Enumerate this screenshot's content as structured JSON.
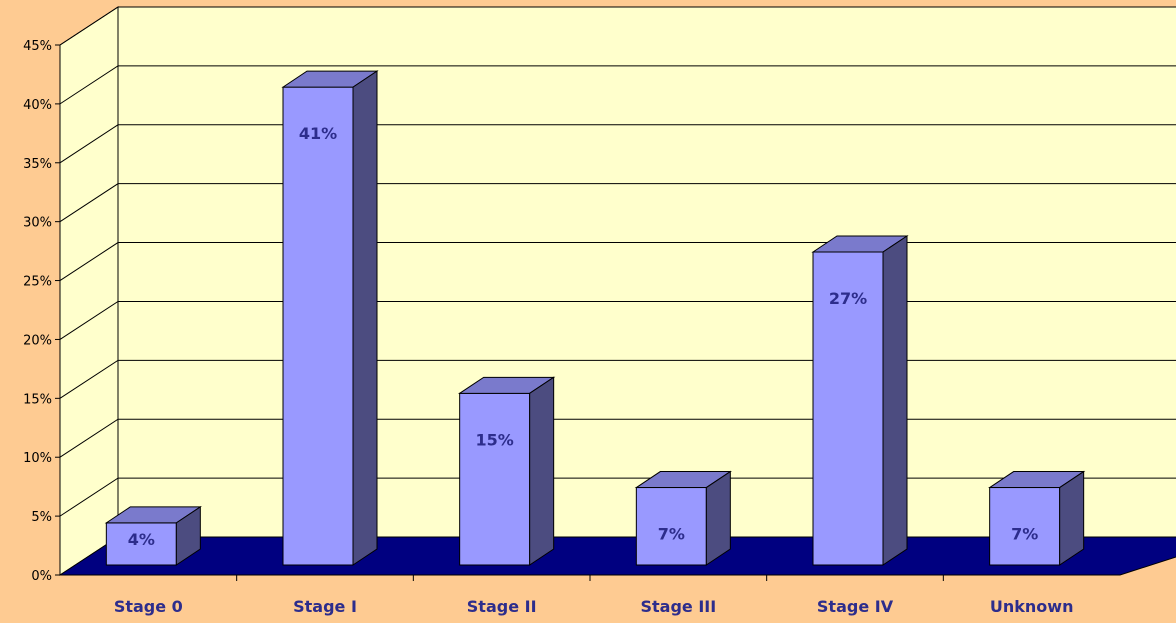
{
  "chart_data": {
    "type": "bar",
    "categories": [
      "Stage 0",
      "Stage I",
      "Stage II",
      "Stage III",
      "Stage IV",
      "Unknown"
    ],
    "values": [
      4,
      41,
      15,
      7,
      27,
      7
    ],
    "data_labels": [
      "4%",
      "41%",
      "15%",
      "7%",
      "27%",
      "7%"
    ],
    "ylim": [
      0,
      45
    ],
    "yticks": [
      0,
      5,
      10,
      15,
      20,
      25,
      30,
      35,
      40,
      45
    ],
    "ytick_labels": [
      "0%",
      "5%",
      "10%",
      "15%",
      "20%",
      "25%",
      "30%",
      "35%",
      "40%",
      "45%"
    ],
    "grid": true,
    "style": "3d-column",
    "colors": {
      "background": "#FECB92",
      "plot_wall": "#FFFFCC",
      "floor": "#000080",
      "bar_front": "#9999FF",
      "bar_top": "#7A7ACC",
      "bar_side": "#4C4C80",
      "label": "#2D2D8C"
    }
  }
}
